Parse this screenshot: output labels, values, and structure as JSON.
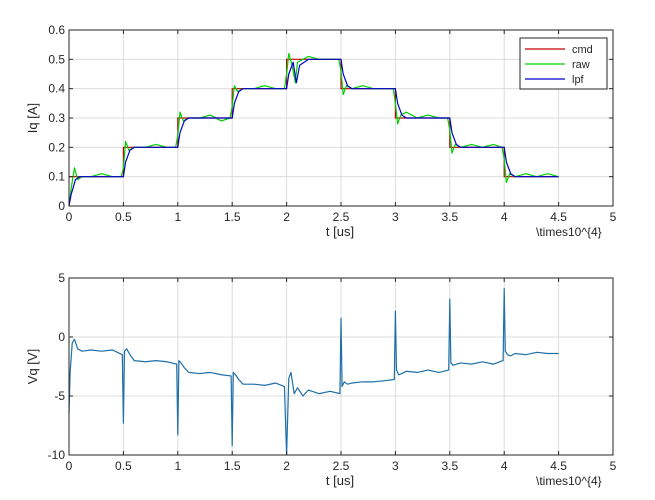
{
  "chart_data": [
    {
      "type": "line",
      "xlabel": "t [us]",
      "ylabel": "Iq [A]",
      "exponent_label": "\\times10^{4}",
      "xlim": [
        0,
        5
      ],
      "ylim": [
        0,
        0.6
      ],
      "xticks": [
        0,
        0.5,
        1,
        1.5,
        2,
        2.5,
        3,
        3.5,
        4,
        4.5,
        5
      ],
      "xtick_labels": [
        "0",
        "0.5",
        "1",
        "1.5",
        "2",
        "2.5",
        "3",
        "3.5",
        "4",
        "4.5",
        "5"
      ],
      "yticks": [
        0,
        0.1,
        0.2,
        0.3,
        0.4,
        0.5,
        0.6
      ],
      "ytick_labels": [
        "0",
        "0.1",
        "0.2",
        "0.3",
        "0.4",
        "0.5",
        "0.6"
      ],
      "grid": true,
      "legend_position": "top-right",
      "series": [
        {
          "name": "cmd",
          "color": "#c00000",
          "x": [
            0,
            0.5,
            0.5,
            1,
            1,
            1.5,
            1.5,
            2,
            2,
            2.5,
            2.5,
            3,
            3,
            3.5,
            3.5,
            4,
            4,
            4.5
          ],
          "y": [
            0.1,
            0.1,
            0.2,
            0.2,
            0.3,
            0.3,
            0.4,
            0.4,
            0.5,
            0.5,
            0.4,
            0.4,
            0.3,
            0.3,
            0.2,
            0.2,
            0.1,
            0.1
          ]
        },
        {
          "name": "raw",
          "color": "#00d000",
          "x": [
            0,
            0.02,
            0.05,
            0.08,
            0.12,
            0.2,
            0.3,
            0.4,
            0.48,
            0.5,
            0.52,
            0.55,
            0.6,
            0.7,
            0.8,
            0.9,
            0.98,
            1.0,
            1.02,
            1.05,
            1.1,
            1.2,
            1.3,
            1.4,
            1.48,
            1.5,
            1.52,
            1.55,
            1.6,
            1.7,
            1.8,
            1.9,
            1.98,
            2.0,
            2.02,
            2.05,
            2.08,
            2.1,
            2.15,
            2.2,
            2.3,
            2.4,
            2.48,
            2.5,
            2.52,
            2.55,
            2.6,
            2.7,
            2.8,
            2.9,
            2.98,
            3.0,
            3.02,
            3.05,
            3.1,
            3.2,
            3.3,
            3.4,
            3.48,
            3.5,
            3.52,
            3.55,
            3.6,
            3.7,
            3.8,
            3.9,
            3.98,
            4.0,
            4.02,
            4.05,
            4.1,
            4.2,
            4.3,
            4.4,
            4.5
          ],
          "y": [
            0.0,
            0.06,
            0.13,
            0.09,
            0.1,
            0.1,
            0.11,
            0.1,
            0.1,
            0.13,
            0.22,
            0.19,
            0.2,
            0.2,
            0.21,
            0.2,
            0.2,
            0.24,
            0.32,
            0.29,
            0.3,
            0.3,
            0.31,
            0.29,
            0.3,
            0.34,
            0.41,
            0.39,
            0.4,
            0.4,
            0.41,
            0.4,
            0.4,
            0.45,
            0.52,
            0.48,
            0.42,
            0.49,
            0.5,
            0.51,
            0.5,
            0.5,
            0.5,
            0.46,
            0.38,
            0.41,
            0.4,
            0.41,
            0.4,
            0.4,
            0.4,
            0.35,
            0.28,
            0.31,
            0.32,
            0.3,
            0.31,
            0.3,
            0.3,
            0.26,
            0.18,
            0.21,
            0.2,
            0.21,
            0.2,
            0.21,
            0.2,
            0.16,
            0.08,
            0.11,
            0.1,
            0.11,
            0.1,
            0.11,
            0.1
          ]
        },
        {
          "name": "lpf",
          "color": "#0000cc",
          "x": [
            0,
            0.02,
            0.06,
            0.1,
            0.2,
            0.3,
            0.4,
            0.5,
            0.52,
            0.56,
            0.6,
            0.7,
            0.8,
            0.9,
            1.0,
            1.02,
            1.06,
            1.1,
            1.2,
            1.3,
            1.4,
            1.5,
            1.52,
            1.56,
            1.6,
            1.7,
            1.8,
            1.9,
            2.0,
            2.02,
            2.06,
            2.09,
            2.12,
            2.2,
            2.3,
            2.4,
            2.5,
            2.52,
            2.56,
            2.6,
            2.7,
            2.8,
            2.9,
            3.0,
            3.02,
            3.06,
            3.1,
            3.2,
            3.3,
            3.4,
            3.5,
            3.52,
            3.56,
            3.6,
            3.7,
            3.8,
            3.9,
            4.0,
            4.02,
            4.06,
            4.1,
            4.2,
            4.3,
            4.4,
            4.5
          ],
          "y": [
            0.0,
            0.04,
            0.09,
            0.1,
            0.1,
            0.1,
            0.1,
            0.1,
            0.15,
            0.19,
            0.2,
            0.2,
            0.2,
            0.2,
            0.2,
            0.25,
            0.29,
            0.3,
            0.3,
            0.3,
            0.3,
            0.3,
            0.35,
            0.39,
            0.4,
            0.4,
            0.4,
            0.4,
            0.4,
            0.45,
            0.49,
            0.42,
            0.48,
            0.5,
            0.5,
            0.5,
            0.5,
            0.45,
            0.41,
            0.4,
            0.4,
            0.4,
            0.4,
            0.4,
            0.35,
            0.31,
            0.3,
            0.3,
            0.3,
            0.3,
            0.3,
            0.25,
            0.21,
            0.2,
            0.2,
            0.2,
            0.2,
            0.2,
            0.15,
            0.11,
            0.1,
            0.1,
            0.1,
            0.1,
            0.1
          ]
        }
      ]
    },
    {
      "type": "line",
      "xlabel": "t [us]",
      "ylabel": "Vq [V]",
      "exponent_label": "\\times10^{4}",
      "xlim": [
        0,
        5
      ],
      "ylim": [
        -10,
        5
      ],
      "xticks": [
        0,
        0.5,
        1,
        1.5,
        2,
        2.5,
        3,
        3.5,
        4,
        4.5,
        5
      ],
      "xtick_labels": [
        "0",
        "0.5",
        "1",
        "1.5",
        "2",
        "2.5",
        "3",
        "3.5",
        "4",
        "4.5",
        "5"
      ],
      "yticks": [
        -10,
        -5,
        0,
        5
      ],
      "ytick_labels": [
        "-10",
        "-5",
        "0",
        "5"
      ],
      "grid": true,
      "series": [
        {
          "color": "#1f6fa8",
          "x": [
            0,
            0.01,
            0.03,
            0.05,
            0.08,
            0.12,
            0.2,
            0.3,
            0.4,
            0.49,
            0.5,
            0.51,
            0.53,
            0.56,
            0.6,
            0.7,
            0.8,
            0.9,
            0.99,
            1.0,
            1.01,
            1.03,
            1.06,
            1.1,
            1.2,
            1.3,
            1.4,
            1.49,
            1.5,
            1.51,
            1.53,
            1.56,
            1.6,
            1.7,
            1.8,
            1.9,
            1.98,
            2.0,
            2.02,
            2.04,
            2.07,
            2.1,
            2.15,
            2.2,
            2.3,
            2.4,
            2.49,
            2.5,
            2.51,
            2.53,
            2.56,
            2.6,
            2.7,
            2.8,
            2.9,
            2.99,
            3.0,
            3.01,
            3.03,
            3.06,
            3.1,
            3.2,
            3.3,
            3.4,
            3.49,
            3.5,
            3.51,
            3.53,
            3.56,
            3.6,
            3.7,
            3.8,
            3.9,
            3.99,
            4.0,
            4.01,
            4.03,
            4.06,
            4.1,
            4.2,
            4.3,
            4.4,
            4.5
          ],
          "y": [
            -6.5,
            -3.0,
            -0.5,
            -0.2,
            -1.0,
            -1.2,
            -1.1,
            -1.2,
            -1.1,
            -1.5,
            -7.3,
            -1.2,
            -1.0,
            -1.5,
            -2.0,
            -2.1,
            -2.0,
            -2.1,
            -2.3,
            -8.3,
            -2.0,
            -2.2,
            -2.6,
            -3.0,
            -3.1,
            -3.0,
            -3.2,
            -3.3,
            -9.2,
            -3.0,
            -3.2,
            -3.6,
            -4.0,
            -4.0,
            -4.1,
            -3.9,
            -4.2,
            -10.0,
            -3.5,
            -3.0,
            -4.8,
            -4.3,
            -5.0,
            -4.5,
            -4.8,
            -4.6,
            -4.8,
            1.6,
            -4.2,
            -3.8,
            -4.0,
            -3.9,
            -3.8,
            -3.8,
            -3.7,
            -3.6,
            2.2,
            -2.8,
            -3.2,
            -3.1,
            -2.9,
            -3.0,
            -2.8,
            -3.0,
            -2.8,
            3.2,
            -2.2,
            -2.4,
            -2.3,
            -2.2,
            -2.3,
            -2.1,
            -2.3,
            -2.0,
            4.1,
            -1.2,
            -1.5,
            -1.6,
            -1.4,
            -1.5,
            -1.3,
            -1.4,
            -1.4
          ]
        }
      ]
    }
  ]
}
